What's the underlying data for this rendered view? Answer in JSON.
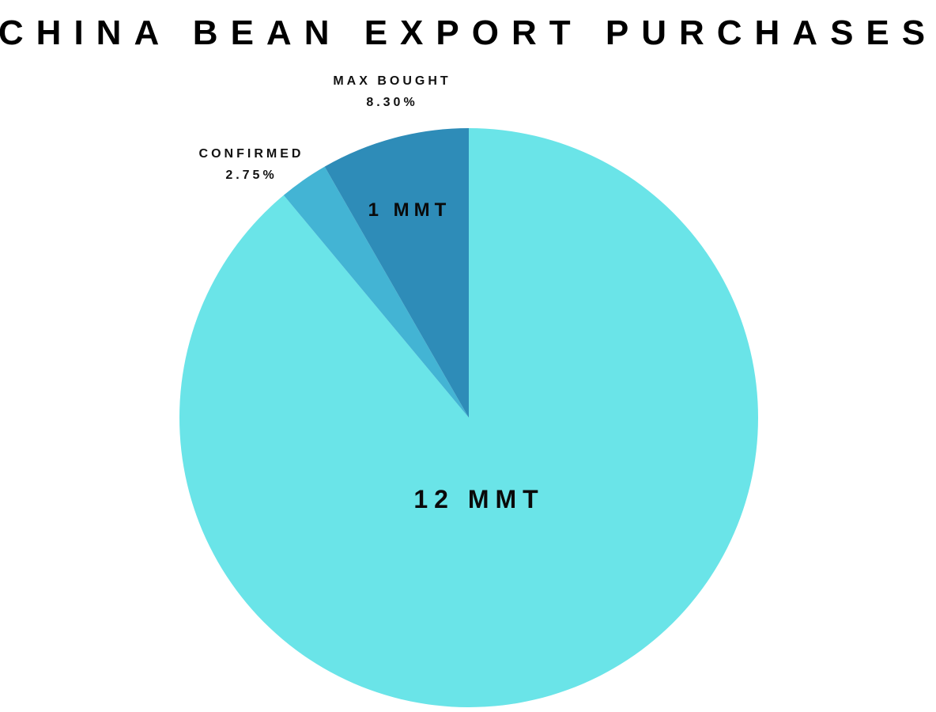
{
  "chart_data": {
    "type": "pie",
    "title": "CHINA BEAN EXPORT PURCHASES",
    "slices": [
      {
        "label": "",
        "value_label": "12 MMT",
        "value": 88.95,
        "color": "#6ae4e8"
      },
      {
        "label": "CONFIRMED",
        "value_label": "2.75%",
        "value": 2.75,
        "color": "#43b4d4"
      },
      {
        "label": "MAX BOUGHT",
        "value_label": "8.30%",
        "value": 8.3,
        "color": "#2e8cb8",
        "inner_label": "1 MMT"
      }
    ],
    "start_angle_deg": 0,
    "direction": "clockwise"
  }
}
